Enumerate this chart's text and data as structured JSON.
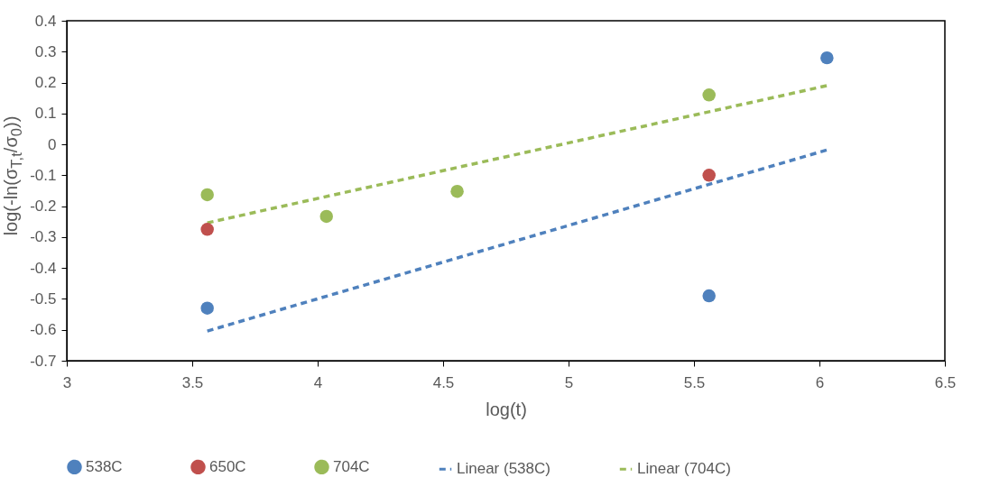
{
  "chart_data": {
    "type": "scatter",
    "xlabel": "log(t)",
    "ylabel": "log(-ln(σ$_{T,t}$/σ$_{0}$))",
    "xlim": [
      3,
      6.5
    ],
    "xticks": [
      3,
      3.5,
      4,
      4.5,
      5,
      5.5,
      6,
      6.5
    ],
    "ylim": [
      -0.7,
      0.4
    ],
    "yticks": [
      -0.7,
      -0.6,
      -0.5,
      -0.4,
      -0.3,
      -0.2,
      -0.1,
      0,
      0.1,
      0.2,
      0.3,
      0.4
    ],
    "legend": "bottom",
    "marker": "circle",
    "series": [
      {
        "name": "538C",
        "color": "#4f81bd",
        "x": [
          3.56,
          5.56,
          6.03
        ],
        "values": [
          -0.53,
          -0.49,
          0.28
        ]
      },
      {
        "name": "650C",
        "color": "#c0504d",
        "x": [
          3.56,
          5.56
        ],
        "values": [
          -0.275,
          -0.1
        ]
      },
      {
        "name": "704C",
        "color": "#9bbb59",
        "x": [
          3.56,
          4.035,
          4.556,
          5.56
        ],
        "values": [
          -0.163,
          -0.233,
          -0.152,
          0.16
        ]
      },
      {
        "name": "Linear (538C)",
        "type": "line",
        "marker": "none",
        "line_style": "dashed",
        "color": "#4f81bd",
        "x": [
          3.56,
          6.03
        ],
        "values": [
          -0.604,
          -0.018
        ]
      },
      {
        "name": "Linear (704C)",
        "type": "line",
        "marker": "none",
        "line_style": "dashed",
        "color": "#9bbb59",
        "x": [
          3.56,
          6.03
        ],
        "values": [
          -0.254,
          0.19
        ]
      }
    ]
  }
}
